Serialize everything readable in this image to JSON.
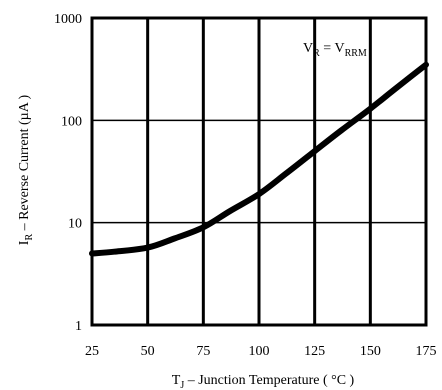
{
  "chart_data": {
    "type": "line",
    "title": "",
    "xlabel": {
      "main": "T",
      "sub": "J",
      "rest": " – Junction Temperature ( °C )"
    },
    "ylabel": {
      "main": "I",
      "sub": "R",
      "rest": " – Reverse Current (µA )"
    },
    "xlim": [
      25,
      175
    ],
    "ylim": [
      1,
      1000
    ],
    "yscale": "log",
    "grid": true,
    "x_ticks": [
      "25",
      "50",
      "75",
      "100",
      "125",
      "150",
      "175"
    ],
    "y_ticks": [
      "1",
      "10",
      "100",
      "1000"
    ],
    "annotation": {
      "v1": "V",
      "s1": "R",
      "eq": " = V",
      "s2": "RRM"
    },
    "series": [
      {
        "x": [
          25,
          35,
          50,
          62,
          75,
          87,
          100,
          112,
          125,
          137,
          150,
          162,
          175
        ],
        "y": [
          5.0,
          5.2,
          5.7,
          7.0,
          9.0,
          13.0,
          19.0,
          30.0,
          50.0,
          80.0,
          130.0,
          210.0,
          350.0
        ]
      }
    ],
    "colors": {
      "line": "#000000",
      "grid": "#000000",
      "background": "#ffffff"
    }
  }
}
